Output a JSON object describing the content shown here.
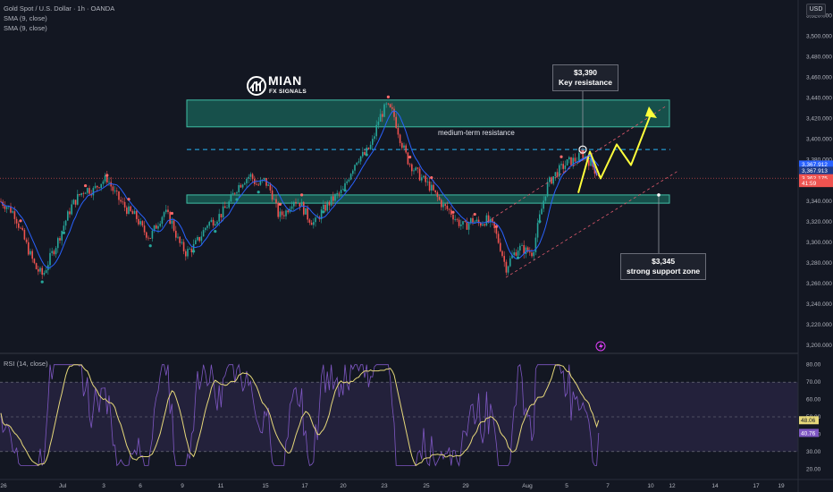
{
  "header": {
    "symbol_line": "Gold Spot / U.S. Dollar · 1h · OANDA",
    "indicator_1": "SMA (9, close)",
    "indicator_2": "SMA (9, close)",
    "currency": "USD"
  },
  "logo": {
    "name": "MIAN",
    "sub": "FX SIGNALS"
  },
  "annotations": {
    "resistance_zone_label": "medium-term resistance",
    "key_resistance_price": "$3,390",
    "key_resistance_label": "Key resistance",
    "support_price": "$3,345",
    "support_label": "strong support zone"
  },
  "price_badges": [
    "3,367.912",
    "3,367.913",
    "3,362.175",
    "41:59"
  ],
  "rsi_label": "RSI (14, close)",
  "rsi_badges": [
    "48.06",
    "40.76"
  ],
  "colors": {
    "background": "#131722",
    "up_candle": "#26a69a",
    "down_candle": "#ef5350",
    "sma": "#2962ff",
    "zone": "#1b7f6e",
    "projection": "#ffff3b",
    "rsi_line": "#7e57c2",
    "rsi_ma": "#e6d87a"
  },
  "chart_data": {
    "type": "candlestick",
    "title": "Gold Spot / U.S. Dollar · 1h · OANDA",
    "ylim": [
      3195,
      3535
    ],
    "y_ticks": [
      3200,
      3220,
      3240,
      3260,
      3280,
      3300,
      3320,
      3340,
      3360,
      3380,
      3400,
      3420,
      3440,
      3460,
      3480,
      3500,
      3520
    ],
    "y_tick_labels": [
      "3,200.000",
      "3,220.000",
      "3,240.000",
      "3,260.000",
      "3,280.000",
      "3,300.000",
      "3,320.000",
      "3,340.000",
      "3,360.000",
      "3,380.000",
      "3,400.000",
      "3,420.000",
      "3,440.000",
      "3,460.000",
      "3,480.000",
      "3,500.000",
      "3,520.000"
    ],
    "x_tick_labels": [
      "26",
      "Jul",
      "3",
      "6",
      "9",
      "11",
      "15",
      "17",
      "20",
      "23",
      "25",
      "29",
      "Aug",
      "5",
      "7",
      "10",
      "12",
      "14",
      "17",
      "19"
    ],
    "close_path": [
      [
        0,
        3340
      ],
      [
        8,
        3335
      ],
      [
        16,
        3328
      ],
      [
        24,
        3310
      ],
      [
        32,
        3292
      ],
      [
        40,
        3275
      ],
      [
        48,
        3268
      ],
      [
        56,
        3285
      ],
      [
        64,
        3300
      ],
      [
        72,
        3318
      ],
      [
        80,
        3335
      ],
      [
        88,
        3345
      ],
      [
        96,
        3352
      ],
      [
        104,
        3350
      ],
      [
        112,
        3358
      ],
      [
        120,
        3362
      ],
      [
        128,
        3348
      ],
      [
        136,
        3338
      ],
      [
        144,
        3330
      ],
      [
        152,
        3325
      ],
      [
        160,
        3312
      ],
      [
        168,
        3305
      ],
      [
        176,
        3318
      ],
      [
        184,
        3330
      ],
      [
        192,
        3320
      ],
      [
        200,
        3300
      ],
      [
        208,
        3290
      ],
      [
        216,
        3295
      ],
      [
        224,
        3305
      ],
      [
        232,
        3318
      ],
      [
        240,
        3322
      ],
      [
        248,
        3328
      ],
      [
        256,
        3338
      ],
      [
        264,
        3352
      ],
      [
        272,
        3360
      ],
      [
        280,
        3365
      ],
      [
        288,
        3355
      ],
      [
        296,
        3360
      ],
      [
        304,
        3348
      ],
      [
        312,
        3325
      ],
      [
        320,
        3330
      ],
      [
        328,
        3342
      ],
      [
        336,
        3338
      ],
      [
        344,
        3325
      ],
      [
        352,
        3318
      ],
      [
        360,
        3330
      ],
      [
        368,
        3338
      ],
      [
        376,
        3345
      ],
      [
        384,
        3350
      ],
      [
        392,
        3368
      ],
      [
        400,
        3382
      ],
      [
        408,
        3385
      ],
      [
        416,
        3395
      ],
      [
        424,
        3420
      ],
      [
        432,
        3432
      ],
      [
        440,
        3425
      ],
      [
        448,
        3400
      ],
      [
        456,
        3380
      ],
      [
        464,
        3370
      ],
      [
        472,
        3362
      ],
      [
        480,
        3355
      ],
      [
        488,
        3345
      ],
      [
        496,
        3335
      ],
      [
        504,
        3330
      ],
      [
        512,
        3320
      ],
      [
        520,
        3315
      ],
      [
        528,
        3322
      ],
      [
        536,
        3318
      ],
      [
        544,
        3322
      ],
      [
        552,
        3315
      ],
      [
        560,
        3295
      ],
      [
        566,
        3275
      ],
      [
        572,
        3285
      ],
      [
        580,
        3295
      ],
      [
        588,
        3292
      ],
      [
        596,
        3290
      ],
      [
        604,
        3325
      ],
      [
        612,
        3355
      ],
      [
        620,
        3365
      ],
      [
        628,
        3372
      ],
      [
        636,
        3378
      ],
      [
        644,
        3380
      ],
      [
        652,
        3385
      ],
      [
        660,
        3378
      ],
      [
        668,
        3367
      ],
      [
        672,
        3365
      ]
    ],
    "rsi": {
      "label": "RSI (14, close)",
      "ylim": [
        15,
        85
      ],
      "y_ticks": [
        20,
        30,
        40,
        50,
        60,
        70,
        80
      ],
      "levels": [
        30,
        50,
        70
      ],
      "last_value": 40.76,
      "ma_last_value": 48.06
    },
    "zones": [
      {
        "name": "medium-term resistance",
        "low": 3412,
        "high": 3438
      },
      {
        "name": "support",
        "low": 3338,
        "high": 3346
      }
    ],
    "levels": [
      {
        "name": "key resistance",
        "value": 3390
      },
      {
        "name": "support",
        "value": 3345
      }
    ]
  }
}
